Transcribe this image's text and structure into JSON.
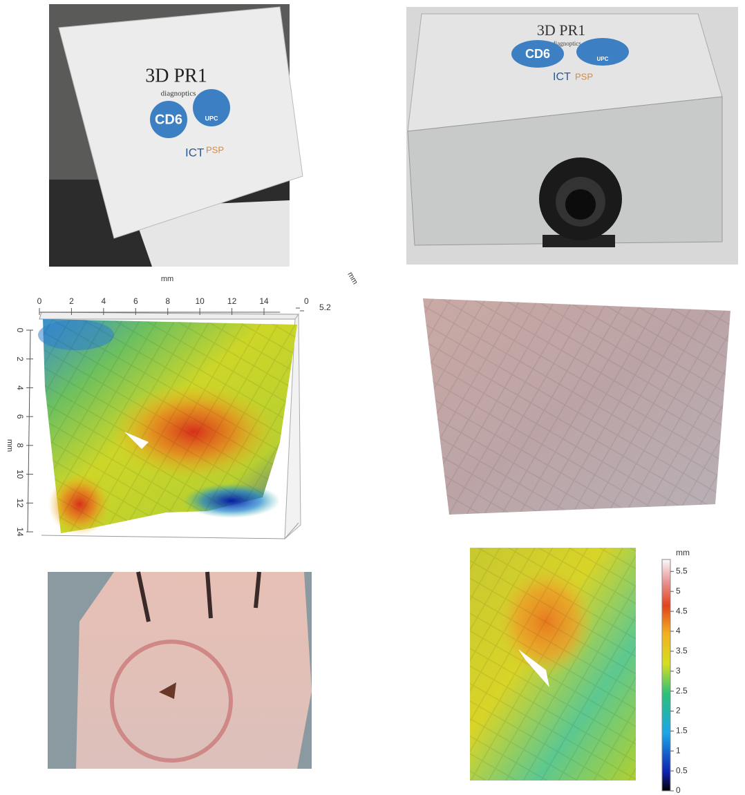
{
  "device_front": {
    "title": "3D PR1",
    "subtitle": "diagnoptics",
    "logo_left": "CD6",
    "logo_right": "UPC",
    "brand_dark": "ICT",
    "brand_light": "PSP"
  },
  "device_angle": {
    "title": "3D PR1",
    "subtitle": "diagnoptics",
    "logo_left": "CD6",
    "logo_right": "UPC",
    "brand_dark": "ICT",
    "brand_light": "PSP"
  },
  "surface_plot": {
    "x_label": "mm",
    "y_label": "mm",
    "z_label": "mm",
    "xlim": [
      0,
      15
    ],
    "xticks": [
      0,
      2,
      4,
      6,
      8,
      10,
      12,
      14
    ],
    "ylim": [
      0,
      14
    ],
    "yticks": [
      0,
      2,
      4,
      6,
      8,
      10,
      12,
      14
    ],
    "zticks": [
      0,
      5.2
    ]
  },
  "colorbar": {
    "label": "mm",
    "lim": [
      0,
      5.8
    ],
    "ticks": [
      0,
      0.5,
      1,
      1.5,
      2,
      2.5,
      3,
      3.5,
      4,
      4.5,
      5,
      5.5
    ]
  }
}
